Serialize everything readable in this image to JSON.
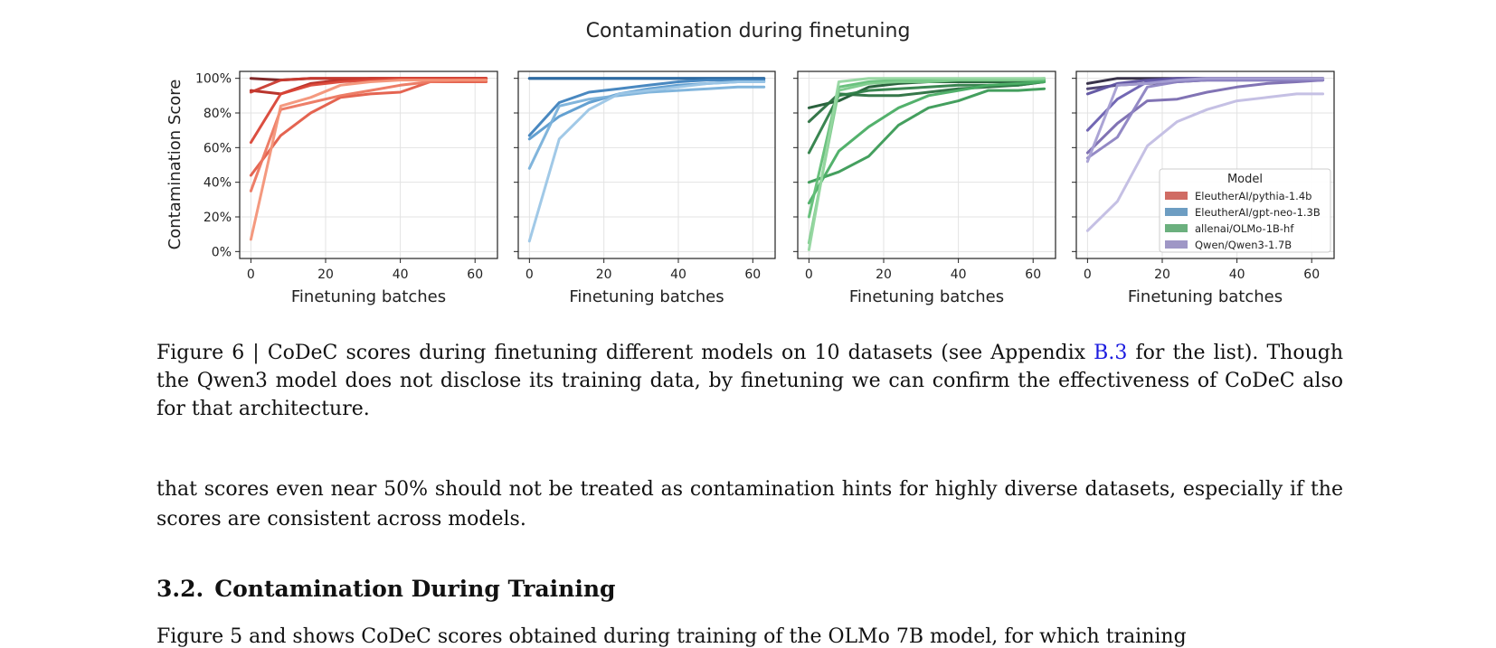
{
  "figure": {
    "title": "Contamination during finetuning",
    "ylabel": "Contamination Score",
    "xlabel": "Finetuning batches",
    "y_ticks": [
      "0%",
      "20%",
      "40%",
      "60%",
      "80%",
      "100%"
    ],
    "x_ticks": [
      "0",
      "20",
      "40",
      "60"
    ],
    "legend_title": "Model",
    "colors": {
      "pythia": "#d94436",
      "gptneo": "#4f91c2",
      "olmo": "#3a9a55",
      "qwen": "#7a6bb0"
    }
  },
  "chart_data": [
    {
      "type": "line",
      "title": "",
      "model": "EleutherAI/pythia-1.4b",
      "xlabel": "Finetuning batches",
      "ylabel": "Contamination Score",
      "xlim": [
        -3,
        66
      ],
      "ylim": [
        -4,
        104
      ],
      "grid": true,
      "series": [
        {
          "x": [
            0,
            8,
            16,
            24,
            32,
            40,
            48,
            56,
            63
          ],
          "y": [
            100,
            99,
            100,
            100,
            100,
            100,
            100,
            100,
            100
          ],
          "color": "#7a1e1e"
        },
        {
          "x": [
            0,
            8,
            16,
            24,
            32,
            40,
            48,
            56,
            63
          ],
          "y": [
            93,
            91,
            97,
            99,
            100,
            100,
            100,
            100,
            100
          ],
          "color": "#b52a22"
        },
        {
          "x": [
            0,
            8,
            16,
            24,
            32,
            40,
            48,
            56,
            63
          ],
          "y": [
            92,
            99,
            100,
            100,
            100,
            100,
            100,
            100,
            100
          ],
          "color": "#c93a2f"
        },
        {
          "x": [
            0,
            8,
            16,
            24,
            32,
            40,
            48,
            56,
            63
          ],
          "y": [
            63,
            91,
            96,
            98,
            99,
            100,
            100,
            100,
            100
          ],
          "color": "#d94436"
        },
        {
          "x": [
            0,
            8,
            16,
            24,
            32,
            40,
            48,
            56,
            63
          ],
          "y": [
            44,
            67,
            80,
            89,
            91,
            92,
            98,
            98,
            98
          ],
          "color": "#e35c48"
        },
        {
          "x": [
            0,
            8,
            16,
            24,
            32,
            40,
            48,
            56,
            63
          ],
          "y": [
            35,
            82,
            86,
            90,
            93,
            96,
            98,
            99,
            99
          ],
          "color": "#ec7760"
        },
        {
          "x": [
            0,
            8,
            16,
            24,
            32,
            40,
            48,
            56,
            63
          ],
          "y": [
            7,
            84,
            89,
            96,
            98,
            99,
            99,
            99,
            99
          ],
          "color": "#f39378"
        }
      ]
    },
    {
      "type": "line",
      "title": "",
      "model": "EleutherAI/gpt-neo-1.3B",
      "xlabel": "Finetuning batches",
      "xlim": [
        -3,
        66
      ],
      "ylim": [
        -4,
        104
      ],
      "grid": true,
      "series": [
        {
          "x": [
            0,
            8,
            16,
            24,
            32,
            40,
            48,
            56,
            63
          ],
          "y": [
            100,
            100,
            100,
            100,
            100,
            100,
            100,
            100,
            100
          ],
          "color": "#1f4f7a"
        },
        {
          "x": [
            0,
            8,
            16,
            24,
            32,
            40,
            48,
            56,
            63
          ],
          "y": [
            100,
            100,
            100,
            100,
            100,
            100,
            100,
            100,
            100
          ],
          "color": "#2e6da4"
        },
        {
          "x": [
            0,
            8,
            16,
            24,
            32,
            40,
            48,
            56,
            63
          ],
          "y": [
            67,
            86,
            92,
            94,
            96,
            98,
            99,
            99,
            99
          ],
          "color": "#3f82bd"
        },
        {
          "x": [
            0,
            8,
            16,
            24,
            32,
            40,
            48,
            56,
            63
          ],
          "y": [
            65,
            78,
            86,
            91,
            94,
            96,
            97,
            98,
            98
          ],
          "color": "#5b9bcf"
        },
        {
          "x": [
            0,
            8,
            16,
            24,
            32,
            40,
            48,
            56,
            63
          ],
          "y": [
            48,
            84,
            88,
            90,
            92,
            93,
            94,
            95,
            95
          ],
          "color": "#7ab1da"
        },
        {
          "x": [
            0,
            8,
            16,
            24,
            32,
            40,
            48,
            56,
            63
          ],
          "y": [
            6,
            65,
            82,
            91,
            93,
            95,
            97,
            98,
            98
          ],
          "color": "#9cc6e6"
        }
      ]
    },
    {
      "type": "line",
      "title": "",
      "model": "allenai/OLMo-1B-hf",
      "xlabel": "Finetuning batches",
      "xlim": [
        -3,
        66
      ],
      "ylim": [
        -4,
        104
      ],
      "grid": true,
      "series": [
        {
          "x": [
            0,
            8,
            16,
            24,
            32,
            40,
            48,
            56,
            63
          ],
          "y": [
            83,
            87,
            95,
            97,
            98,
            98,
            98,
            98,
            99
          ],
          "color": "#1f5a33"
        },
        {
          "x": [
            0,
            8,
            16,
            24,
            32,
            40,
            48,
            56,
            63
          ],
          "y": [
            75,
            91,
            90,
            90,
            92,
            94,
            95,
            96,
            98
          ],
          "color": "#2b7040"
        },
        {
          "x": [
            0,
            8,
            16,
            24,
            32,
            40,
            48,
            56,
            63
          ],
          "y": [
            57,
            90,
            93,
            94,
            95,
            96,
            96,
            96,
            98
          ],
          "color": "#2f7f48"
        },
        {
          "x": [
            0,
            8,
            16,
            24,
            32,
            40,
            48,
            56,
            63
          ],
          "y": [
            40,
            46,
            55,
            73,
            83,
            87,
            93,
            93,
            94
          ],
          "color": "#3a9a55"
        },
        {
          "x": [
            0,
            8,
            16,
            24,
            32,
            40,
            48,
            56,
            63
          ],
          "y": [
            28,
            58,
            72,
            83,
            90,
            93,
            96,
            97,
            98
          ],
          "color": "#4aad64"
        },
        {
          "x": [
            0,
            8,
            16,
            24,
            32,
            40,
            48,
            56,
            63
          ],
          "y": [
            20,
            95,
            98,
            99,
            99,
            99,
            99,
            99,
            99
          ],
          "color": "#62bf77"
        },
        {
          "x": [
            0,
            8,
            16,
            24,
            32,
            40,
            48,
            56,
            63
          ],
          "y": [
            5,
            93,
            97,
            98,
            98,
            99,
            99,
            99,
            100
          ],
          "color": "#7ccb8b"
        },
        {
          "x": [
            0,
            8,
            16,
            24,
            32,
            40,
            48,
            56,
            63
          ],
          "y": [
            1,
            98,
            100,
            100,
            100,
            100,
            100,
            100,
            100
          ],
          "color": "#95d6a0"
        }
      ]
    },
    {
      "type": "line",
      "title": "",
      "model": "Qwen/Qwen3-1.7B",
      "xlabel": "Finetuning batches",
      "xlim": [
        -3,
        66
      ],
      "ylim": [
        -4,
        104
      ],
      "grid": true,
      "legend": {
        "title": "Model",
        "placement": "lower-right",
        "entries": [
          {
            "label": "EleutherAI/pythia-1.4b",
            "color": "#d06c64"
          },
          {
            "label": "EleutherAI/gpt-neo-1.3B",
            "color": "#6d9dc2"
          },
          {
            "label": "allenai/OLMo-1B-hf",
            "color": "#6bb07e"
          },
          {
            "label": "Qwen/Qwen3-1.7B",
            "color": "#9f97c6"
          }
        ]
      },
      "series": [
        {
          "x": [
            0,
            8,
            16,
            24,
            32,
            40,
            48,
            56,
            63
          ],
          "y": [
            97,
            100,
            100,
            100,
            100,
            100,
            100,
            100,
            100
          ],
          "color": "#2e2840"
        },
        {
          "x": [
            0,
            8,
            16,
            24,
            32,
            40,
            48,
            56,
            63
          ],
          "y": [
            94,
            96,
            97,
            98,
            99,
            99,
            99,
            99,
            99
          ],
          "color": "#4a3f70"
        },
        {
          "x": [
            0,
            8,
            16,
            24,
            32,
            40,
            48,
            56,
            63
          ],
          "y": [
            91,
            97,
            99,
            100,
            100,
            100,
            100,
            100,
            100
          ],
          "color": "#5e52a0"
        },
        {
          "x": [
            0,
            8,
            16,
            24,
            32,
            40,
            48,
            56,
            63
          ],
          "y": [
            70,
            88,
            98,
            99,
            99,
            99,
            99,
            99,
            99
          ],
          "color": "#6a5fb0"
        },
        {
          "x": [
            0,
            8,
            16,
            24,
            32,
            40,
            48,
            56,
            63
          ],
          "y": [
            57,
            74,
            87,
            88,
            92,
            95,
            97,
            98,
            99
          ],
          "color": "#7a6bb0"
        },
        {
          "x": [
            0,
            8,
            16,
            24,
            32,
            40,
            48,
            56,
            63
          ],
          "y": [
            54,
            66,
            95,
            98,
            99,
            99,
            99,
            99,
            99
          ],
          "color": "#8d83c2"
        },
        {
          "x": [
            0,
            8,
            16,
            24,
            32,
            40,
            48,
            56,
            63
          ],
          "y": [
            52,
            96,
            97,
            99,
            100,
            100,
            100,
            100,
            100
          ],
          "color": "#a79fd3"
        },
        {
          "x": [
            0,
            8,
            16,
            24,
            32,
            40,
            48,
            56,
            63
          ],
          "y": [
            12,
            29,
            61,
            75,
            82,
            87,
            89,
            91,
            91
          ],
          "color": "#c2bde3"
        }
      ]
    }
  ],
  "caption": {
    "prefix": "Figure 6 | CoDeC scores during finetuning different models on 10 datasets (see Appendix ",
    "ref": "B.3",
    "suffix": " for the list). Though the Qwen3 model does not disclose its training data, by finetuning we can confirm the effectiveness of CoDeC also for that architecture."
  },
  "body_paragraph": "that scores even near 50% should not be treated as contamination hints for highly diverse datasets, especially if the scores are consistent across models.",
  "section": {
    "number": "3.2.",
    "title": "Contamination During Training"
  },
  "next_line": "Figure 5 and shows CoDeC scores obtained during training of the OLMo 7B model, for which training"
}
